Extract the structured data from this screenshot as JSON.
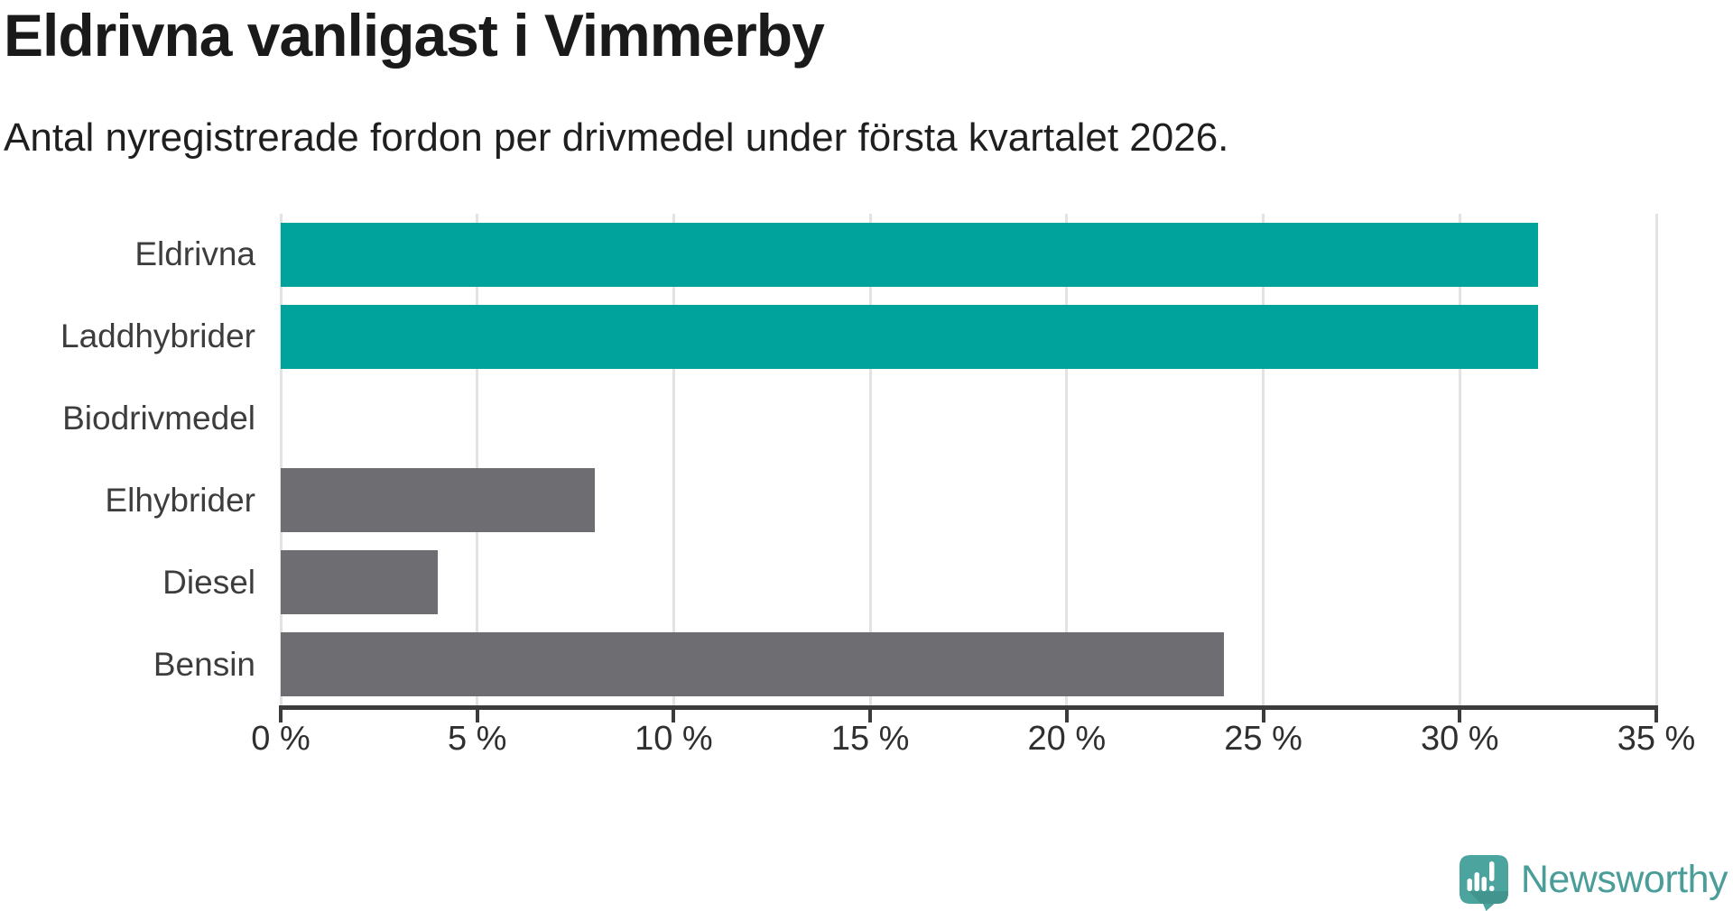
{
  "chart": {
    "title": "Eldrivna vanligast i Vimmerby",
    "subtitle": "Antal nyregistrerade fordon per drivmedel under första kvartalet 2026."
  },
  "chart_data": {
    "type": "bar",
    "orientation": "horizontal",
    "title": "Eldrivna vanligast i Vimmerby",
    "subtitle": "Antal nyregistrerade fordon per drivmedel under första kvartalet 2026.",
    "categories": [
      "Eldrivna",
      "Laddhybrider",
      "Biodrivmedel",
      "Elhybrider",
      "Diesel",
      "Bensin"
    ],
    "values": [
      32,
      32,
      0,
      8,
      4,
      24
    ],
    "unit": "%",
    "xlim": [
      0,
      35
    ],
    "x_ticks": [
      0,
      5,
      10,
      15,
      20,
      25,
      30,
      35
    ],
    "x_tick_labels": [
      "0 %",
      "5 %",
      "10 %",
      "15 %",
      "20 %",
      "25 %",
      "30 %",
      "35 %"
    ],
    "grid": "vertical",
    "legend": "none",
    "bar_colors": [
      "#00a39b",
      "#00a39b",
      "#6e6e72",
      "#6e6e72",
      "#6e6e72",
      "#6e6e72"
    ],
    "accent_color": "#00a39b",
    "base_color": "#6e6e72",
    "grid_color": "#e3e3e3",
    "axis_color": "#3b3b3b"
  },
  "branding": {
    "logo_text": "Newsworthy",
    "logo_color": "#4a9d99",
    "logo_icon_color": "#4ba49e"
  }
}
